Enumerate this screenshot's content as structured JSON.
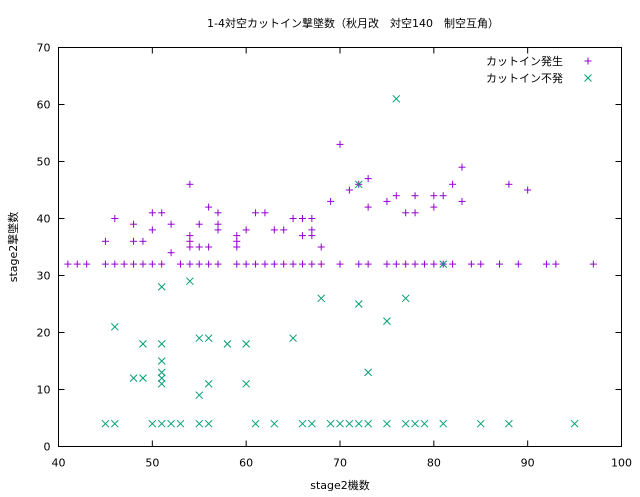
{
  "chart_data": {
    "type": "scatter",
    "title": "1-4対空カットイン撃墜数（秋月改　対空140　制空互角）",
    "xlabel": "stage2機数",
    "ylabel": "stage2撃墜数",
    "xlim": [
      40,
      100
    ],
    "ylim": [
      0,
      70
    ],
    "xticks": [
      40,
      50,
      60,
      70,
      80,
      90,
      100
    ],
    "yticks": [
      0,
      10,
      20,
      30,
      40,
      50,
      60,
      70
    ],
    "grid": false,
    "legend_position": "top-right",
    "series": [
      {
        "name": "カットイン発生",
        "marker": "plus",
        "color": "#9400d3",
        "points": [
          [
            41,
            32
          ],
          [
            42,
            32
          ],
          [
            43,
            32
          ],
          [
            45,
            36
          ],
          [
            45,
            32
          ],
          [
            46,
            40
          ],
          [
            46,
            32
          ],
          [
            47,
            32
          ],
          [
            48,
            39
          ],
          [
            48,
            36
          ],
          [
            48,
            32
          ],
          [
            49,
            36
          ],
          [
            49,
            32
          ],
          [
            50,
            41
          ],
          [
            50,
            38
          ],
          [
            50,
            32
          ],
          [
            51,
            41
          ],
          [
            51,
            32
          ],
          [
            52,
            39
          ],
          [
            52,
            34
          ],
          [
            53,
            32
          ],
          [
            54,
            46
          ],
          [
            54,
            37
          ],
          [
            54,
            36
          ],
          [
            54,
            35
          ],
          [
            54,
            32
          ],
          [
            55,
            39
          ],
          [
            55,
            35
          ],
          [
            55,
            32
          ],
          [
            56,
            42
          ],
          [
            56,
            35
          ],
          [
            56,
            32
          ],
          [
            57,
            41
          ],
          [
            57,
            39
          ],
          [
            57,
            38
          ],
          [
            57,
            32
          ],
          [
            59,
            37
          ],
          [
            59,
            36
          ],
          [
            59,
            35
          ],
          [
            59,
            32
          ],
          [
            60,
            38
          ],
          [
            60,
            32
          ],
          [
            61,
            41
          ],
          [
            61,
            32
          ],
          [
            62,
            41
          ],
          [
            62,
            32
          ],
          [
            63,
            38
          ],
          [
            63,
            32
          ],
          [
            64,
            38
          ],
          [
            64,
            32
          ],
          [
            65,
            40
          ],
          [
            65,
            32
          ],
          [
            66,
            40
          ],
          [
            66,
            37
          ],
          [
            66,
            32
          ],
          [
            67,
            40
          ],
          [
            67,
            38
          ],
          [
            67,
            37
          ],
          [
            67,
            32
          ],
          [
            68,
            35
          ],
          [
            68,
            32
          ],
          [
            69,
            43
          ],
          [
            70,
            53
          ],
          [
            70,
            32
          ],
          [
            71,
            45
          ],
          [
            72,
            46
          ],
          [
            72,
            32
          ],
          [
            73,
            47
          ],
          [
            73,
            42
          ],
          [
            73,
            32
          ],
          [
            75,
            43
          ],
          [
            75,
            32
          ],
          [
            76,
            44
          ],
          [
            76,
            32
          ],
          [
            77,
            41
          ],
          [
            77,
            32
          ],
          [
            78,
            44
          ],
          [
            78,
            41
          ],
          [
            78,
            32
          ],
          [
            79,
            32
          ],
          [
            80,
            44
          ],
          [
            80,
            42
          ],
          [
            80,
            32
          ],
          [
            81,
            44
          ],
          [
            81,
            32
          ],
          [
            82,
            46
          ],
          [
            82,
            32
          ],
          [
            83,
            49
          ],
          [
            83,
            43
          ],
          [
            84,
            32
          ],
          [
            85,
            32
          ],
          [
            87,
            32
          ],
          [
            88,
            46
          ],
          [
            89,
            32
          ],
          [
            90,
            45
          ],
          [
            92,
            32
          ],
          [
            93,
            32
          ],
          [
            97,
            32
          ]
        ]
      },
      {
        "name": "カットイン不発",
        "marker": "cross",
        "color": "#009e73",
        "points": [
          [
            45,
            4
          ],
          [
            46,
            21
          ],
          [
            46,
            4
          ],
          [
            48,
            12
          ],
          [
            49,
            18
          ],
          [
            49,
            12
          ],
          [
            50,
            4
          ],
          [
            51,
            28
          ],
          [
            51,
            18
          ],
          [
            51,
            15
          ],
          [
            51,
            13
          ],
          [
            51,
            12
          ],
          [
            51,
            11
          ],
          [
            51,
            4
          ],
          [
            52,
            4
          ],
          [
            53,
            4
          ],
          [
            54,
            29
          ],
          [
            55,
            19
          ],
          [
            55,
            9
          ],
          [
            55,
            4
          ],
          [
            56,
            19
          ],
          [
            56,
            11
          ],
          [
            56,
            4
          ],
          [
            58,
            18
          ],
          [
            60,
            18
          ],
          [
            60,
            11
          ],
          [
            61,
            4
          ],
          [
            63,
            4
          ],
          [
            65,
            19
          ],
          [
            66,
            4
          ],
          [
            67,
            4
          ],
          [
            68,
            26
          ],
          [
            69,
            4
          ],
          [
            70,
            4
          ],
          [
            71,
            4
          ],
          [
            72,
            46
          ],
          [
            72,
            25
          ],
          [
            72,
            4
          ],
          [
            73,
            13
          ],
          [
            73,
            4
          ],
          [
            75,
            22
          ],
          [
            75,
            4
          ],
          [
            76,
            61
          ],
          [
            77,
            26
          ],
          [
            77,
            4
          ],
          [
            78,
            4
          ],
          [
            79,
            4
          ],
          [
            81,
            32
          ],
          [
            81,
            4
          ],
          [
            85,
            4
          ],
          [
            88,
            4
          ],
          [
            95,
            4
          ]
        ]
      }
    ]
  }
}
